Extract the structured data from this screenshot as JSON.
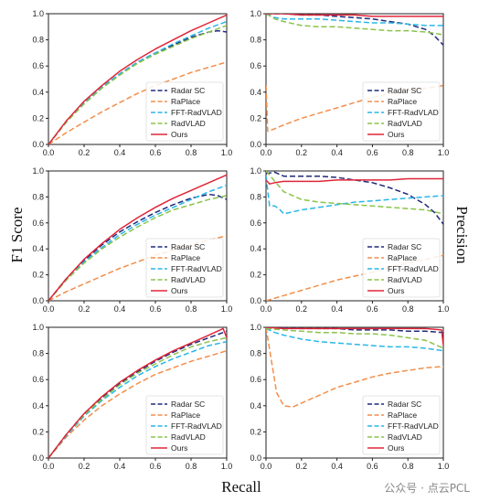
{
  "figure": {
    "ylabel_left": "F1 Score",
    "ylabel_right": "Precision",
    "xlabel": "Recall",
    "watermark": "公众号 · 点云PCL"
  },
  "series_styles": [
    {
      "name": "Radar SC",
      "color": "#1f2a7a",
      "dash": "6,3"
    },
    {
      "name": "RaPlace",
      "color": "#f28e4b",
      "dash": "6,3"
    },
    {
      "name": "FFT-RadVLAD",
      "color": "#29b6e8",
      "dash": "6,3"
    },
    {
      "name": "RadVLAD",
      "color": "#8bc34a",
      "dash": "6,3"
    },
    {
      "name": "Ours",
      "color": "#e0263a",
      "dash": ""
    }
  ],
  "chart_data": [
    {
      "type": "line",
      "panel": "row1-f1",
      "xlim": [
        0,
        1
      ],
      "ylim": [
        0,
        1
      ],
      "xticks": [
        "0.0",
        "0.2",
        "0.4",
        "0.6",
        "0.8",
        "1.0"
      ],
      "yticks": [
        "0.0",
        "0.2",
        "0.4",
        "0.6",
        "0.8",
        "1.0"
      ],
      "legend": "lower-right",
      "series": [
        {
          "name": "Radar SC",
          "x": [
            0,
            0.1,
            0.2,
            0.3,
            0.4,
            0.5,
            0.6,
            0.7,
            0.8,
            0.9,
            0.95,
            1.0
          ],
          "y": [
            0,
            0.17,
            0.32,
            0.44,
            0.54,
            0.63,
            0.7,
            0.76,
            0.82,
            0.86,
            0.87,
            0.86
          ]
        },
        {
          "name": "RaPlace",
          "x": [
            0,
            0.1,
            0.2,
            0.3,
            0.4,
            0.5,
            0.6,
            0.7,
            0.8,
            0.9,
            1.0
          ],
          "y": [
            0,
            0.09,
            0.17,
            0.25,
            0.32,
            0.39,
            0.45,
            0.5,
            0.55,
            0.59,
            0.63
          ]
        },
        {
          "name": "FFT-RadVLAD",
          "x": [
            0,
            0.1,
            0.2,
            0.3,
            0.4,
            0.5,
            0.6,
            0.7,
            0.8,
            0.9,
            1.0
          ],
          "y": [
            0,
            0.17,
            0.32,
            0.44,
            0.54,
            0.63,
            0.7,
            0.77,
            0.83,
            0.89,
            0.94
          ]
        },
        {
          "name": "RadVLAD",
          "x": [
            0,
            0.1,
            0.2,
            0.3,
            0.4,
            0.5,
            0.6,
            0.7,
            0.8,
            0.9,
            1.0
          ],
          "y": [
            0,
            0.17,
            0.31,
            0.43,
            0.53,
            0.62,
            0.69,
            0.75,
            0.81,
            0.86,
            0.91
          ]
        },
        {
          "name": "Ours",
          "x": [
            0,
            0.1,
            0.2,
            0.3,
            0.4,
            0.5,
            0.6,
            0.7,
            0.8,
            0.9,
            1.0
          ],
          "y": [
            0,
            0.18,
            0.33,
            0.45,
            0.56,
            0.65,
            0.73,
            0.8,
            0.87,
            0.93,
            0.99
          ]
        }
      ]
    },
    {
      "type": "line",
      "panel": "row1-precision",
      "xlim": [
        0,
        1
      ],
      "ylim": [
        0,
        1
      ],
      "xticks": [
        "0.0",
        "0.2",
        "0.4",
        "0.6",
        "0.8",
        "1.0"
      ],
      "yticks": [
        "0.0",
        "0.2",
        "0.4",
        "0.6",
        "0.8",
        "1.0"
      ],
      "legend": "lower-right",
      "series": [
        {
          "name": "Radar SC",
          "x": [
            0,
            0.1,
            0.2,
            0.3,
            0.4,
            0.5,
            0.6,
            0.7,
            0.8,
            0.9,
            0.95,
            1.0
          ],
          "y": [
            1.0,
            1.0,
            0.99,
            0.99,
            0.98,
            0.97,
            0.96,
            0.94,
            0.92,
            0.88,
            0.83,
            0.76
          ]
        },
        {
          "name": "RaPlace",
          "x": [
            0,
            0.01,
            0.05,
            0.1,
            0.2,
            0.3,
            0.4,
            0.5,
            0.6,
            0.7,
            0.8,
            0.9,
            1.0
          ],
          "y": [
            0.45,
            0.1,
            0.12,
            0.15,
            0.2,
            0.24,
            0.28,
            0.32,
            0.36,
            0.39,
            0.41,
            0.43,
            0.45
          ]
        },
        {
          "name": "FFT-RadVLAD",
          "x": [
            0,
            0.05,
            0.1,
            0.2,
            0.3,
            0.4,
            0.5,
            0.6,
            0.7,
            0.8,
            0.9,
            1.0
          ],
          "y": [
            1.0,
            0.97,
            0.96,
            0.96,
            0.96,
            0.95,
            0.94,
            0.93,
            0.93,
            0.92,
            0.91,
            0.91
          ]
        },
        {
          "name": "RadVLAD",
          "x": [
            0,
            0.05,
            0.1,
            0.2,
            0.3,
            0.4,
            0.5,
            0.6,
            0.7,
            0.8,
            0.9,
            1.0
          ],
          "y": [
            1.0,
            0.96,
            0.94,
            0.91,
            0.9,
            0.9,
            0.89,
            0.88,
            0.87,
            0.87,
            0.86,
            0.84
          ]
        },
        {
          "name": "Ours",
          "x": [
            0,
            0.1,
            0.2,
            0.3,
            0.4,
            0.5,
            0.6,
            0.7,
            0.8,
            0.9,
            1.0
          ],
          "y": [
            1.0,
            1.0,
            0.99,
            0.99,
            0.99,
            0.99,
            0.98,
            0.98,
            0.98,
            0.98,
            0.98
          ]
        }
      ]
    },
    {
      "type": "line",
      "panel": "row2-f1",
      "xlim": [
        0,
        1
      ],
      "ylim": [
        0,
        1
      ],
      "xticks": [
        "0.0",
        "0.2",
        "0.4",
        "0.6",
        "0.8",
        "1.0"
      ],
      "yticks": [
        "0.0",
        "0.2",
        "0.4",
        "0.6",
        "0.8",
        "1.0"
      ],
      "legend": "lower-right",
      "series": [
        {
          "name": "Radar SC",
          "x": [
            0,
            0.1,
            0.2,
            0.3,
            0.4,
            0.5,
            0.6,
            0.7,
            0.8,
            0.9,
            0.95,
            1.0
          ],
          "y": [
            0,
            0.17,
            0.31,
            0.43,
            0.53,
            0.61,
            0.68,
            0.74,
            0.79,
            0.82,
            0.81,
            0.78
          ]
        },
        {
          "name": "RaPlace",
          "x": [
            0,
            0.1,
            0.2,
            0.3,
            0.4,
            0.5,
            0.6,
            0.7,
            0.8,
            0.9,
            1.0
          ],
          "y": [
            0,
            0.07,
            0.13,
            0.19,
            0.25,
            0.3,
            0.35,
            0.39,
            0.43,
            0.47,
            0.5
          ]
        },
        {
          "name": "FFT-RadVLAD",
          "x": [
            0,
            0.1,
            0.2,
            0.3,
            0.4,
            0.5,
            0.6,
            0.7,
            0.8,
            0.9,
            1.0
          ],
          "y": [
            0,
            0.16,
            0.3,
            0.41,
            0.51,
            0.59,
            0.66,
            0.72,
            0.78,
            0.84,
            0.89
          ]
        },
        {
          "name": "RadVLAD",
          "x": [
            0,
            0.1,
            0.2,
            0.3,
            0.4,
            0.5,
            0.6,
            0.7,
            0.8,
            0.9,
            1.0
          ],
          "y": [
            0,
            0.16,
            0.29,
            0.4,
            0.49,
            0.57,
            0.64,
            0.7,
            0.74,
            0.78,
            0.81
          ]
        },
        {
          "name": "Ours",
          "x": [
            0,
            0.1,
            0.2,
            0.3,
            0.4,
            0.5,
            0.6,
            0.7,
            0.8,
            0.9,
            1.0
          ],
          "y": [
            0,
            0.17,
            0.32,
            0.44,
            0.55,
            0.64,
            0.72,
            0.79,
            0.85,
            0.91,
            0.97
          ]
        }
      ]
    },
    {
      "type": "line",
      "panel": "row2-precision",
      "xlim": [
        0,
        1
      ],
      "ylim": [
        0,
        1
      ],
      "xticks": [
        "0.0",
        "0.2",
        "0.4",
        "0.6",
        "0.8",
        "1.0"
      ],
      "yticks": [
        "0.0",
        "0.2",
        "0.4",
        "0.6",
        "0.8",
        "1.0"
      ],
      "legend": "lower-right",
      "series": [
        {
          "name": "Radar SC",
          "x": [
            0,
            0.05,
            0.1,
            0.2,
            0.3,
            0.4,
            0.5,
            0.6,
            0.7,
            0.8,
            0.9,
            0.95,
            1.0
          ],
          "y": [
            0.98,
            0.99,
            0.96,
            0.96,
            0.96,
            0.95,
            0.93,
            0.91,
            0.87,
            0.82,
            0.74,
            0.68,
            0.59
          ]
        },
        {
          "name": "RaPlace",
          "x": [
            0,
            0.1,
            0.2,
            0.3,
            0.4,
            0.5,
            0.6,
            0.7,
            0.8,
            0.9,
            1.0
          ],
          "y": [
            0.0,
            0.04,
            0.08,
            0.12,
            0.16,
            0.19,
            0.22,
            0.26,
            0.29,
            0.32,
            0.35
          ]
        },
        {
          "name": "FFT-RadVLAD",
          "x": [
            0,
            0.02,
            0.05,
            0.08,
            0.1,
            0.2,
            0.3,
            0.4,
            0.5,
            0.6,
            0.7,
            0.8,
            0.9,
            1.0
          ],
          "y": [
            0.96,
            0.73,
            0.73,
            0.7,
            0.67,
            0.7,
            0.72,
            0.74,
            0.76,
            0.77,
            0.78,
            0.79,
            0.8,
            0.81
          ]
        },
        {
          "name": "RadVLAD",
          "x": [
            0,
            0.05,
            0.1,
            0.2,
            0.3,
            0.4,
            0.5,
            0.6,
            0.7,
            0.8,
            0.9,
            1.0
          ],
          "y": [
            1.0,
            0.92,
            0.84,
            0.78,
            0.76,
            0.75,
            0.74,
            0.73,
            0.72,
            0.71,
            0.7,
            0.67
          ]
        },
        {
          "name": "Ours",
          "x": [
            0,
            0.02,
            0.05,
            0.1,
            0.2,
            0.3,
            0.4,
            0.5,
            0.6,
            0.7,
            0.8,
            0.9,
            1.0
          ],
          "y": [
            0.93,
            0.9,
            0.91,
            0.92,
            0.92,
            0.92,
            0.93,
            0.93,
            0.93,
            0.93,
            0.94,
            0.94,
            0.94
          ]
        }
      ]
    },
    {
      "type": "line",
      "panel": "row3-f1",
      "xlim": [
        0,
        1
      ],
      "ylim": [
        0,
        1
      ],
      "xticks": [
        "0.0",
        "0.2",
        "0.4",
        "0.6",
        "0.8",
        "1.0"
      ],
      "yticks": [
        "0.0",
        "0.2",
        "0.4",
        "0.6",
        "0.8",
        "1.0"
      ],
      "legend": "lower-right",
      "series": [
        {
          "name": "Radar SC",
          "x": [
            0,
            0.1,
            0.2,
            0.3,
            0.4,
            0.5,
            0.6,
            0.7,
            0.8,
            0.9,
            1.0
          ],
          "y": [
            0,
            0.18,
            0.34,
            0.46,
            0.57,
            0.66,
            0.74,
            0.81,
            0.87,
            0.92,
            0.97
          ]
        },
        {
          "name": "RaPlace",
          "x": [
            0,
            0.1,
            0.2,
            0.3,
            0.4,
            0.5,
            0.6,
            0.7,
            0.8,
            0.9,
            1.0
          ],
          "y": [
            0,
            0.16,
            0.29,
            0.4,
            0.49,
            0.57,
            0.64,
            0.69,
            0.74,
            0.78,
            0.82
          ]
        },
        {
          "name": "FFT-RadVLAD",
          "x": [
            0,
            0.1,
            0.2,
            0.3,
            0.4,
            0.5,
            0.6,
            0.7,
            0.8,
            0.9,
            1.0
          ],
          "y": [
            0,
            0.17,
            0.32,
            0.44,
            0.54,
            0.63,
            0.7,
            0.76,
            0.81,
            0.86,
            0.89
          ]
        },
        {
          "name": "RadVLAD",
          "x": [
            0,
            0.1,
            0.2,
            0.3,
            0.4,
            0.5,
            0.6,
            0.7,
            0.8,
            0.9,
            1.0
          ],
          "y": [
            0,
            0.18,
            0.33,
            0.45,
            0.56,
            0.65,
            0.72,
            0.79,
            0.85,
            0.89,
            0.92
          ]
        },
        {
          "name": "Ours",
          "x": [
            0,
            0.1,
            0.2,
            0.3,
            0.4,
            0.5,
            0.6,
            0.7,
            0.8,
            0.9,
            0.98,
            1.0
          ],
          "y": [
            0,
            0.18,
            0.34,
            0.47,
            0.58,
            0.67,
            0.75,
            0.82,
            0.88,
            0.94,
            0.99,
            0.92
          ]
        }
      ]
    },
    {
      "type": "line",
      "panel": "row3-precision",
      "xlim": [
        0,
        1
      ],
      "ylim": [
        0,
        1
      ],
      "xticks": [
        "0.0",
        "0.2",
        "0.4",
        "0.6",
        "0.8",
        "1.0"
      ],
      "yticks": [
        "0.0",
        "0.2",
        "0.4",
        "0.6",
        "0.8",
        "1.0"
      ],
      "legend": "lower-right",
      "series": [
        {
          "name": "Radar SC",
          "x": [
            0,
            0.1,
            0.2,
            0.3,
            0.4,
            0.5,
            0.6,
            0.7,
            0.8,
            0.9,
            1.0
          ],
          "y": [
            1.0,
            1.0,
            0.99,
            0.99,
            0.99,
            0.98,
            0.98,
            0.98,
            0.97,
            0.97,
            0.96
          ]
        },
        {
          "name": "RaPlace",
          "x": [
            0,
            0.03,
            0.06,
            0.1,
            0.15,
            0.2,
            0.3,
            0.4,
            0.5,
            0.6,
            0.7,
            0.8,
            0.9,
            1.0
          ],
          "y": [
            1.0,
            0.75,
            0.5,
            0.4,
            0.39,
            0.42,
            0.48,
            0.54,
            0.58,
            0.62,
            0.65,
            0.67,
            0.69,
            0.7
          ]
        },
        {
          "name": "FFT-RadVLAD",
          "x": [
            0,
            0.05,
            0.1,
            0.2,
            0.3,
            0.4,
            0.5,
            0.6,
            0.7,
            0.8,
            0.9,
            1.0
          ],
          "y": [
            0.99,
            0.96,
            0.94,
            0.91,
            0.89,
            0.88,
            0.87,
            0.86,
            0.85,
            0.85,
            0.84,
            0.82
          ]
        },
        {
          "name": "RadVLAD",
          "x": [
            0,
            0.1,
            0.2,
            0.3,
            0.4,
            0.5,
            0.6,
            0.7,
            0.8,
            0.9,
            1.0
          ],
          "y": [
            0.99,
            0.98,
            0.97,
            0.96,
            0.96,
            0.95,
            0.95,
            0.94,
            0.92,
            0.9,
            0.84
          ]
        },
        {
          "name": "Ours",
          "x": [
            0,
            0.1,
            0.2,
            0.3,
            0.4,
            0.5,
            0.6,
            0.7,
            0.8,
            0.9,
            0.99,
            1.0
          ],
          "y": [
            1.0,
            0.99,
            0.99,
            0.99,
            0.99,
            0.99,
            0.99,
            0.99,
            0.99,
            0.99,
            0.98,
            0.86
          ]
        }
      ]
    }
  ]
}
